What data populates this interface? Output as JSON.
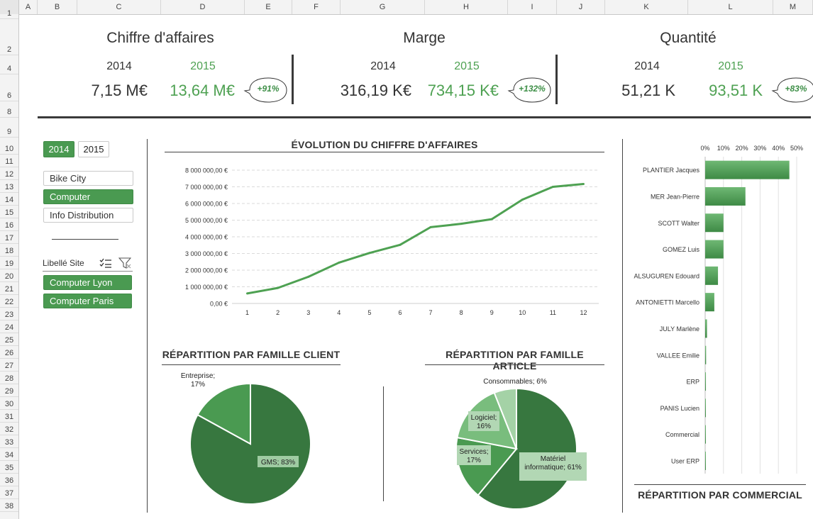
{
  "sheet": {
    "columns": [
      "A",
      "B",
      "C",
      "D",
      "E",
      "F",
      "G",
      "H",
      "I",
      "J",
      "K",
      "L",
      "M"
    ],
    "rows": [
      "1",
      "2",
      "4",
      "6",
      "8",
      "9",
      "10",
      "11",
      "12",
      "13",
      "14",
      "15",
      "16",
      "17",
      "18",
      "19",
      "20",
      "21",
      "22",
      "23",
      "24",
      "25",
      "26",
      "27",
      "28",
      "29",
      "30",
      "31",
      "32",
      "33",
      "34",
      "35",
      "36",
      "37",
      "38"
    ]
  },
  "kpis": [
    {
      "title": "Chiffre d'affaires",
      "year_a": "2014",
      "year_b": "2015",
      "value_a": "7,15 M€",
      "value_b": "13,64 M€",
      "change": "+91%"
    },
    {
      "title": "Marge",
      "year_a": "2014",
      "year_b": "2015",
      "value_a": "316,19 K€",
      "value_b": "734,15 K€",
      "change": "+132%"
    },
    {
      "title": "Quantité",
      "year_a": "2014",
      "year_b": "2015",
      "value_a": "51,21 K",
      "value_b": "93,51 K",
      "change": "+83%"
    }
  ],
  "slicers": {
    "years": [
      {
        "label": "2014",
        "selected": true
      },
      {
        "label": "2015",
        "selected": false
      }
    ],
    "companies": [
      {
        "label": "Bike City",
        "selected": false
      },
      {
        "label": "Computer",
        "selected": true
      },
      {
        "label": "Info Distribution",
        "selected": false
      }
    ],
    "site_header": "Libellé Site",
    "sites": [
      {
        "label": "Computer Lyon",
        "selected": true
      },
      {
        "label": "Computer Paris",
        "selected": true
      }
    ]
  },
  "colors": {
    "accent": "#4a9a51",
    "dark_green": "#37773f",
    "mid_green": "#4a9a51",
    "light_green": "#79bd7d",
    "pale_green": "#a4d2a6",
    "line_green": "#4ea152"
  },
  "line_chart": {
    "title": "ÉVOLUTION DU CHIFFRE D'AFFAIRES",
    "y_ticks": [
      "0,00 €",
      "1 000 000,00 €",
      "2 000 000,00 €",
      "3 000 000,00 €",
      "4 000 000,00 €",
      "5 000 000,00 €",
      "6 000 000,00 €",
      "7 000 000,00 €",
      "8 000 000,00 €"
    ],
    "x_ticks": [
      "1",
      "2",
      "3",
      "4",
      "5",
      "6",
      "7",
      "8",
      "9",
      "10",
      "11",
      "12"
    ]
  },
  "pie_client": {
    "title": "RÉPARTITION PAR FAMILLE CLIENT",
    "label_gms": "GMS; 83%",
    "label_ent_1": "Entreprise;",
    "label_ent_2": "17%"
  },
  "pie_article": {
    "title": "RÉPARTITION PAR FAMILLE ARTICLE",
    "label_conso": "Consommables; 6%",
    "label_log_1": "Logiciel;",
    "label_log_2": "16%",
    "label_serv_1": "Services;",
    "label_serv_2": "17%",
    "label_mat_1": "Matériel",
    "label_mat_2": "informatique; 61%"
  },
  "bar_chart": {
    "title": "RÉPARTITION PAR COMMERCIAL",
    "x_ticks": [
      "0%",
      "10%",
      "20%",
      "30%",
      "40%",
      "50%"
    ]
  },
  "chart_data": [
    {
      "type": "line",
      "title": "ÉVOLUTION DU CHIFFRE D'AFFAIRES",
      "x": [
        1,
        2,
        3,
        4,
        5,
        6,
        7,
        8,
        9,
        10,
        11,
        12
      ],
      "values": [
        600000,
        930000,
        1600000,
        2450000,
        3030000,
        3520000,
        4580000,
        4780000,
        5060000,
        6230000,
        7000000,
        7170000
      ],
      "ylim": [
        0,
        8000000
      ]
    },
    {
      "type": "pie",
      "title": "RÉPARTITION PAR FAMILLE CLIENT",
      "categories": [
        "GMS",
        "Entreprise"
      ],
      "values": [
        83,
        17
      ]
    },
    {
      "type": "pie",
      "title": "RÉPARTITION PAR FAMILLE ARTICLE",
      "categories": [
        "Matériel informatique",
        "Services",
        "Logiciel",
        "Consommables"
      ],
      "values": [
        61,
        17,
        16,
        6
      ]
    },
    {
      "type": "bar",
      "title": "RÉPARTITION PAR COMMERCIAL",
      "categories": [
        "PLANTIER Jacques",
        "MER Jean-Pierre",
        "SCOTT Walter",
        "GOMEZ Luis",
        "ALSUGUREN Edouard",
        "ANTONIETTI Marcello",
        "JULY Marlène",
        "VALLEE Emilie",
        "ERP",
        "PANIS Lucien",
        "Commercial",
        "User ERP"
      ],
      "values": [
        46,
        22,
        10,
        10,
        7,
        5,
        1,
        0.5,
        0.4,
        0.3,
        0.3,
        0.3
      ],
      "xlim": [
        0,
        50
      ]
    }
  ]
}
